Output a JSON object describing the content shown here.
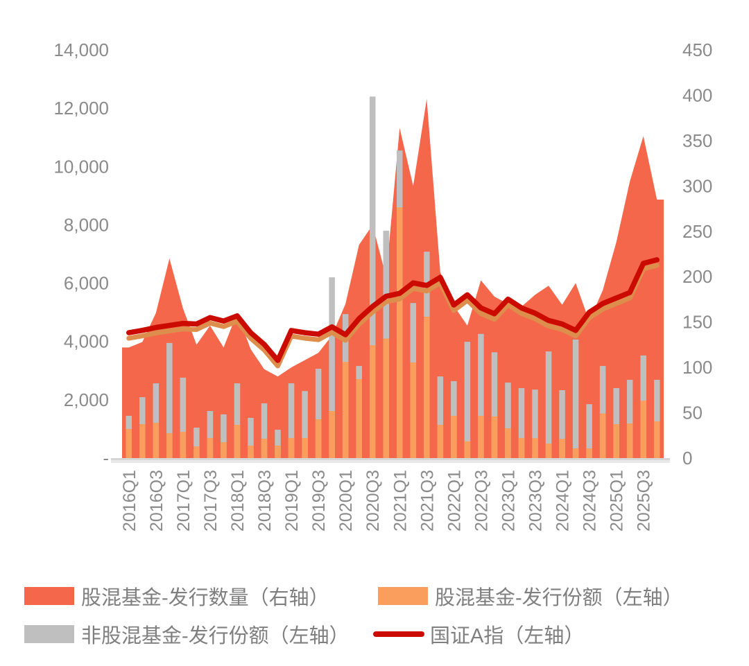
{
  "chart_data": {
    "type": "combo",
    "categories": [
      "2016Q1",
      "2016Q2",
      "2016Q3",
      "2016Q4",
      "2017Q1",
      "2017Q2",
      "2017Q3",
      "2017Q4",
      "2018Q1",
      "2018Q2",
      "2018Q3",
      "2018Q4",
      "2019Q1",
      "2019Q2",
      "2019Q3",
      "2019Q4",
      "2020Q1",
      "2020Q2",
      "2020Q3",
      "2020Q4",
      "2021Q1",
      "2021Q2",
      "2021Q3",
      "2021Q4",
      "2022Q1",
      "2022Q2",
      "2022Q3",
      "2022Q4",
      "2023Q1",
      "2023Q2",
      "2023Q3",
      "2023Q4",
      "2024Q1",
      "2024Q2",
      "2024Q3",
      "2024Q4",
      "2025Q1",
      "2025Q2",
      "2025Q3",
      "2025Q4"
    ],
    "x_tick_labels": [
      "2016Q1",
      "2016Q3",
      "2017Q1",
      "2017Q3",
      "2018Q1",
      "2018Q3",
      "2019Q1",
      "2019Q3",
      "2020Q1",
      "2020Q3",
      "2021Q1",
      "2021Q3",
      "2022Q1",
      "2022Q3",
      "2023Q1",
      "2023Q3",
      "2024Q1",
      "2024Q3",
      "2025Q1",
      "2025Q3"
    ],
    "series": [
      {
        "name": "股混基金-发行数量（右轴）",
        "type": "area",
        "axis": "right",
        "color": "#F4674B",
        "values": [
          122,
          128,
          160,
          220,
          165,
          125,
          146,
          122,
          160,
          120,
          98,
          90,
          100,
          108,
          116,
          135,
          170,
          235,
          257,
          200,
          364,
          300,
          396,
          205,
          168,
          146,
          196,
          178,
          170,
          167,
          180,
          190,
          169,
          193,
          151,
          185,
          238,
          305,
          355,
          285
        ]
      },
      {
        "name": "股混基金-发行份额（左轴）",
        "type": "bar",
        "axis": "left",
        "color": "#F99E5C",
        "values": [
          1000,
          1165,
          1210,
          855,
          900,
          400,
          690,
          545,
          1140,
          430,
          665,
          430,
          690,
          690,
          1330,
          1615,
          3300,
          2710,
          3870,
          4100,
          8600,
          3280,
          4850,
          1140,
          1450,
          575,
          1450,
          1430,
          1020,
          690,
          685,
          500,
          660,
          335,
          335,
          1530,
          1165,
          1190,
          1970,
          1260
        ]
      },
      {
        "name": "非股混基金-发行份额（左轴）",
        "type": "bar",
        "axis": "left",
        "color": "#BFBFBF",
        "values": [
          1450,
          2090,
          2565,
          3950,
          2760,
          1045,
          1615,
          1500,
          2565,
          1380,
          1880,
          975,
          2565,
          2300,
          3065,
          6200,
          4940,
          3160,
          12400,
          7800,
          10550,
          5320,
          7080,
          2800,
          2640,
          3990,
          4260,
          3630,
          2590,
          2400,
          2350,
          3660,
          2330,
          4065,
          1850,
          3160,
          2400,
          2685,
          3520,
          2685
        ]
      },
      {
        "name": "国证A指（左轴）",
        "type": "line",
        "axis": "left",
        "color": "#CB0A00",
        "values": [
          4300,
          4380,
          4480,
          4550,
          4620,
          4600,
          4820,
          4700,
          4880,
          4300,
          3900,
          3350,
          4375,
          4300,
          4250,
          4500,
          4230,
          4780,
          5200,
          5550,
          5650,
          6010,
          5920,
          6200,
          5250,
          5600,
          5150,
          4950,
          5450,
          5150,
          4970,
          4720,
          4600,
          4380,
          5000,
          5300,
          5490,
          5680,
          6680,
          6800
        ]
      }
    ],
    "left_axis": {
      "min": 0,
      "max": 14000,
      "step": 2000,
      "tick_labels": [
        "14,000",
        "12,000",
        "10,000",
        "8,000",
        "6,000",
        "4,000",
        "2,000",
        "-"
      ]
    },
    "right_axis": {
      "min": 0,
      "max": 450,
      "step": 50,
      "tick_labels": [
        "450",
        "400",
        "350",
        "300",
        "250",
        "200",
        "150",
        "100",
        "50",
        "0"
      ]
    },
    "grid": "off",
    "legend_position": "bottom"
  },
  "legend": {
    "items": [
      {
        "label": "股混基金-发行数量（右轴）",
        "swatch_color": "#F4674B",
        "kind": "box"
      },
      {
        "label": "股混基金-发行份额（左轴）",
        "swatch_color": "#F99E5C",
        "kind": "box"
      },
      {
        "label": "非股混基金-发行份额（左轴）",
        "swatch_color": "#BFBFBF",
        "kind": "box"
      },
      {
        "label": "国证A指（左轴）",
        "swatch_color": "#CB0A00",
        "kind": "line"
      }
    ]
  },
  "colors": {
    "line_underlay": "#DE8E4C",
    "axis_text": "#8a8a8a",
    "legend_text": "#7f7f7f",
    "baseline": "#D6D6D6",
    "baseline_shadow": "#E9E9E9",
    "background": "#ffffff"
  }
}
